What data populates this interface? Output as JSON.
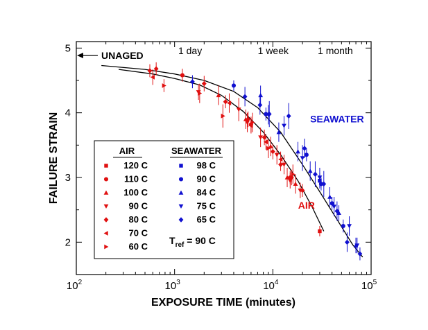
{
  "chart_data": {
    "type": "scatter",
    "xlabel": "EXPOSURE TIME  (minutes)",
    "ylabel": "FAILURE STRAIN",
    "xscale": "log",
    "xlim": [
      100,
      100000
    ],
    "ylim": [
      1.5,
      5.1
    ],
    "x_ticks": [
      {
        "value": 100,
        "base": "10",
        "exp": "2"
      },
      {
        "value": 1000,
        "base": "10",
        "exp": "3"
      },
      {
        "value": 10000,
        "base": "10",
        "exp": "4"
      },
      {
        "value": 100000,
        "base": "10",
        "exp": "5"
      }
    ],
    "y_ticks": [
      {
        "value": 2,
        "label": "2"
      },
      {
        "value": 3,
        "label": "3"
      },
      {
        "value": 4,
        "label": "4"
      },
      {
        "value": 5,
        "label": "5"
      }
    ],
    "top_labels": [
      {
        "value": 1440,
        "label": "1 day"
      },
      {
        "value": 10080,
        "label": "1 week"
      },
      {
        "value": 43200,
        "label": "1 month"
      }
    ],
    "unaged": {
      "label": "UNAGED",
      "value": 4.88
    },
    "annotations": [
      {
        "text": "SEAWATER",
        "x": 45000,
        "y": 3.85,
        "color": "#1010d0"
      },
      {
        "text": "AIR",
        "x": 22000,
        "y": 2.52,
        "color": "#e01010"
      }
    ],
    "legend": {
      "air_heading": "AIR",
      "sea_heading": "SEAWATER",
      "tref_main": "T",
      "tref_sub": "ref",
      "tref_value": " = 90 C",
      "air_entries": [
        {
          "label": "120 C",
          "marker": "square"
        },
        {
          "label": "110 C",
          "marker": "circle"
        },
        {
          "label": "100 C",
          "marker": "triangle-up"
        },
        {
          "label": "90 C",
          "marker": "triangle-down"
        },
        {
          "label": "80 C",
          "marker": "diamond"
        },
        {
          "label": "70 C",
          "marker": "triangle-left"
        },
        {
          "label": "60 C",
          "marker": "triangle-right"
        }
      ],
      "sea_entries": [
        {
          "label": "98 C",
          "marker": "square"
        },
        {
          "label": "90 C",
          "marker": "circle"
        },
        {
          "label": "84 C",
          "marker": "triangle-up"
        },
        {
          "label": "75 C",
          "marker": "triangle-down"
        },
        {
          "label": "65 C",
          "marker": "diamond"
        }
      ]
    },
    "fit_curves": [
      {
        "name": "air-fit",
        "points": [
          [
            270,
            4.67
          ],
          [
            600,
            4.6
          ],
          [
            1000,
            4.53
          ],
          [
            1800,
            4.43
          ],
          [
            3000,
            4.27
          ],
          [
            5000,
            4.02
          ],
          [
            8000,
            3.7
          ],
          [
            12000,
            3.35
          ],
          [
            18000,
            2.95
          ],
          [
            25000,
            2.55
          ],
          [
            33000,
            2.17
          ]
        ]
      },
      {
        "name": "seawater-fit",
        "points": [
          [
            180,
            4.73
          ],
          [
            500,
            4.67
          ],
          [
            1000,
            4.6
          ],
          [
            2000,
            4.5
          ],
          [
            4000,
            4.33
          ],
          [
            7000,
            4.08
          ],
          [
            12000,
            3.7
          ],
          [
            20000,
            3.2
          ],
          [
            30000,
            2.78
          ],
          [
            45000,
            2.35
          ],
          [
            65000,
            1.96
          ],
          [
            82000,
            1.77
          ]
        ]
      }
    ],
    "series": [
      {
        "group": "air",
        "temp": "120 C",
        "marker": "square",
        "points": [
          [
            30000,
            2.17,
            0.08
          ]
        ]
      },
      {
        "group": "air",
        "temp": "110 C",
        "marker": "circle",
        "points": [
          [
            1200,
            4.58,
            0.1
          ],
          [
            6000,
            3.82,
            0.12
          ],
          [
            15000,
            3.0,
            0.1
          ]
        ]
      },
      {
        "group": "air",
        "temp": "100 C",
        "marker": "triangle-up",
        "points": [
          [
            2800,
            4.27,
            0.15
          ],
          [
            5300,
            3.9,
            0.15
          ],
          [
            9500,
            3.48,
            0.15
          ],
          [
            14000,
            3.0,
            0.15
          ],
          [
            17000,
            2.9,
            0.15
          ]
        ]
      },
      {
        "group": "air",
        "temp": "90 C",
        "marker": "triangle-down",
        "points": [
          [
            1750,
            4.32,
            0.12
          ],
          [
            4500,
            4.05,
            0.18
          ],
          [
            5500,
            3.85,
            0.15
          ],
          [
            7500,
            3.62,
            0.15
          ],
          [
            11000,
            3.35,
            0.15
          ],
          [
            13000,
            3.2,
            0.15
          ],
          [
            15000,
            2.95,
            0.12
          ],
          [
            19000,
            2.8,
            0.12
          ]
        ]
      },
      {
        "group": "air",
        "temp": "80 C",
        "marker": "diamond",
        "points": [
          [
            560,
            4.65,
            0.1
          ],
          [
            650,
            4.68,
            0.1
          ],
          [
            2000,
            4.45,
            0.12
          ],
          [
            3300,
            4.17,
            0.1
          ],
          [
            5600,
            3.9,
            0.12
          ],
          [
            8200,
            3.62,
            0.12
          ],
          [
            10000,
            3.4,
            0.12
          ],
          [
            12000,
            3.2,
            0.1
          ],
          [
            15500,
            3.0,
            0.12
          ],
          [
            20000,
            2.8,
            0.1
          ]
        ]
      },
      {
        "group": "air",
        "temp": "70 C",
        "marker": "triangle-left",
        "points": [
          [
            600,
            4.55,
            0.12
          ],
          [
            3600,
            4.15,
            0.15
          ],
          [
            6000,
            3.8,
            0.12
          ],
          [
            8500,
            3.55,
            0.12
          ],
          [
            12000,
            3.28,
            0.12
          ]
        ]
      },
      {
        "group": "air",
        "temp": "60 C",
        "marker": "triangle-right",
        "points": [
          [
            780,
            4.42,
            0.1
          ],
          [
            1800,
            4.3,
            0.15
          ],
          [
            3100,
            3.95,
            0.18
          ],
          [
            6200,
            3.85,
            0.15
          ],
          [
            9000,
            3.45,
            0.15
          ],
          [
            16000,
            3.05,
            0.15
          ]
        ]
      },
      {
        "group": "seawater",
        "temp": "98 C",
        "marker": "square",
        "points": [
          [
            30000,
            2.95,
            0.12
          ]
        ]
      },
      {
        "group": "seawater",
        "temp": "90 C",
        "marker": "circle",
        "points": [
          [
            4000,
            4.42,
            0.08
          ],
          [
            8500,
            3.98,
            0.1
          ],
          [
            22000,
            3.35,
            0.1
          ],
          [
            31000,
            2.9,
            0.1
          ],
          [
            40000,
            2.6,
            0.1
          ],
          [
            52000,
            2.25,
            0.1
          ]
        ]
      },
      {
        "group": "seawater",
        "temp": "84 C",
        "marker": "triangle-up",
        "points": [
          [
            7500,
            4.27,
            0.15
          ],
          [
            11500,
            3.7,
            0.15
          ],
          [
            18000,
            3.4,
            0.15
          ],
          [
            24000,
            3.1,
            0.15
          ],
          [
            38000,
            2.7,
            0.15
          ],
          [
            47000,
            2.45,
            0.12
          ],
          [
            70000,
            1.95,
            0.12
          ]
        ]
      },
      {
        "group": "seawater",
        "temp": "75 C",
        "marker": "triangle-down",
        "points": [
          [
            9000,
            3.97,
            0.15
          ],
          [
            13000,
            3.8,
            0.15
          ],
          [
            20000,
            3.3,
            0.2
          ],
          [
            30000,
            3.0,
            0.15
          ],
          [
            42000,
            2.55,
            0.15
          ],
          [
            60000,
            2.25,
            0.15
          ],
          [
            72000,
            1.95,
            0.12
          ]
        ]
      },
      {
        "group": "seawater",
        "temp": "65 C",
        "marker": "diamond",
        "points": [
          [
            1520,
            4.48,
            0.1
          ],
          [
            5200,
            4.25,
            0.15
          ],
          [
            7400,
            4.12,
            0.15
          ],
          [
            9200,
            3.98,
            0.2
          ],
          [
            14500,
            3.95,
            0.2
          ],
          [
            21000,
            3.45,
            0.15
          ],
          [
            27000,
            3.05,
            0.2
          ],
          [
            33000,
            2.9,
            0.2
          ],
          [
            45000,
            2.48,
            0.15
          ],
          [
            57000,
            2.0,
            0.15
          ],
          [
            77000,
            1.82,
            0.1
          ]
        ]
      }
    ],
    "colors": {
      "air": "#e01010",
      "seawater": "#1010d0"
    }
  }
}
